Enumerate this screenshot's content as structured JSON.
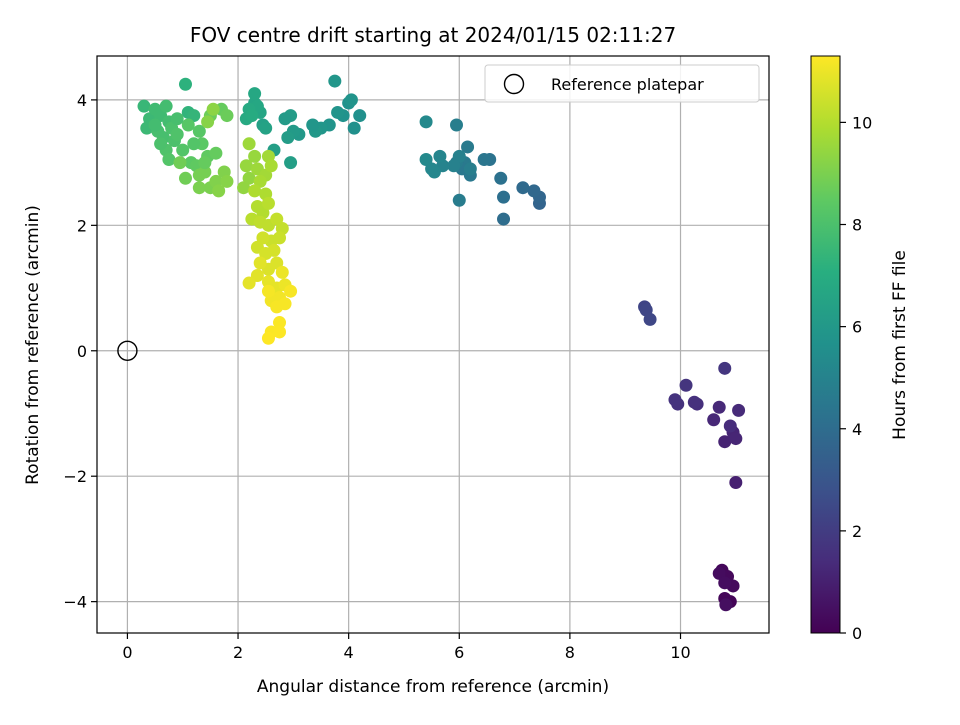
{
  "chart_data": {
    "type": "scatter",
    "title": "FOV centre drift starting at 2024/01/15 02:11:27",
    "xlabel": "Angular distance from reference (arcmin)",
    "ylabel": "Rotation from reference (arcmin)",
    "xlim": [
      -0.55,
      11.6
    ],
    "ylim": [
      -4.5,
      4.7
    ],
    "xticks": [
      0,
      2,
      4,
      6,
      8,
      10
    ],
    "yticks": [
      -4,
      -2,
      0,
      2,
      4
    ],
    "xtick_labels": [
      "0",
      "2",
      "4",
      "6",
      "8",
      "10"
    ],
    "ytick_labels": [
      "−4",
      "−2",
      "0",
      "2",
      "4"
    ],
    "grid": true,
    "legend": {
      "placement": "top-right",
      "entries": [
        "Reference platepar"
      ]
    },
    "reference_point": {
      "x": 0,
      "y": 0,
      "label": "Reference platepar"
    },
    "colorbar": {
      "label": "Hours from first FF file",
      "colormap": "viridis",
      "range": [
        0,
        11.3
      ],
      "ticks": [
        0,
        2,
        4,
        6,
        8,
        10
      ],
      "tick_labels": [
        "0",
        "2",
        "4",
        "6",
        "8",
        "10"
      ]
    },
    "points": [
      {
        "x": 10.9,
        "y": -4.0,
        "c": 0.1
      },
      {
        "x": 10.8,
        "y": -3.95,
        "c": 0.15
      },
      {
        "x": 10.75,
        "y": -3.5,
        "c": 0.2
      },
      {
        "x": 10.85,
        "y": -3.6,
        "c": 0.25
      },
      {
        "x": 10.95,
        "y": -3.75,
        "c": 0.3
      },
      {
        "x": 10.7,
        "y": -3.55,
        "c": 0.35
      },
      {
        "x": 10.8,
        "y": -3.7,
        "c": 0.4
      },
      {
        "x": 10.82,
        "y": -4.05,
        "c": 0.45
      },
      {
        "x": 11.0,
        "y": -2.1,
        "c": 1.0
      },
      {
        "x": 10.8,
        "y": -1.45,
        "c": 1.1
      },
      {
        "x": 10.95,
        "y": -1.3,
        "c": 1.15
      },
      {
        "x": 11.0,
        "y": -1.4,
        "c": 1.2
      },
      {
        "x": 10.6,
        "y": -1.1,
        "c": 1.25
      },
      {
        "x": 10.7,
        "y": -0.9,
        "c": 1.3
      },
      {
        "x": 11.05,
        "y": -0.95,
        "c": 1.35
      },
      {
        "x": 10.9,
        "y": -1.2,
        "c": 1.4
      },
      {
        "x": 10.3,
        "y": -0.85,
        "c": 1.5
      },
      {
        "x": 10.25,
        "y": -0.82,
        "c": 1.55
      },
      {
        "x": 9.95,
        "y": -0.85,
        "c": 1.6
      },
      {
        "x": 9.9,
        "y": -0.78,
        "c": 1.65
      },
      {
        "x": 10.1,
        "y": -0.55,
        "c": 1.7
      },
      {
        "x": 10.8,
        "y": -0.28,
        "c": 1.75
      },
      {
        "x": 9.35,
        "y": 0.7,
        "c": 2.3
      },
      {
        "x": 9.38,
        "y": 0.65,
        "c": 2.35
      },
      {
        "x": 9.45,
        "y": 0.5,
        "c": 2.4
      },
      {
        "x": 7.45,
        "y": 2.35,
        "c": 3.6
      },
      {
        "x": 7.45,
        "y": 2.45,
        "c": 3.7
      },
      {
        "x": 7.35,
        "y": 2.55,
        "c": 3.8
      },
      {
        "x": 7.15,
        "y": 2.6,
        "c": 3.9
      },
      {
        "x": 6.8,
        "y": 2.1,
        "c": 4.0
      },
      {
        "x": 6.8,
        "y": 2.45,
        "c": 4.1
      },
      {
        "x": 6.75,
        "y": 2.75,
        "c": 4.2
      },
      {
        "x": 6.55,
        "y": 3.05,
        "c": 4.3
      },
      {
        "x": 6.45,
        "y": 3.05,
        "c": 4.4
      },
      {
        "x": 6.2,
        "y": 2.8,
        "c": 4.5
      },
      {
        "x": 6.15,
        "y": 3.25,
        "c": 4.6
      },
      {
        "x": 6.0,
        "y": 2.4,
        "c": 4.7
      },
      {
        "x": 5.95,
        "y": 3.6,
        "c": 4.8
      },
      {
        "x": 6.1,
        "y": 3.0,
        "c": 4.6
      },
      {
        "x": 6.05,
        "y": 2.9,
        "c": 4.5
      },
      {
        "x": 5.95,
        "y": 3.0,
        "c": 4.7
      },
      {
        "x": 6.2,
        "y": 2.9,
        "c": 4.8
      },
      {
        "x": 6.0,
        "y": 3.1,
        "c": 4.9
      },
      {
        "x": 5.9,
        "y": 2.95,
        "c": 4.9
      },
      {
        "x": 5.7,
        "y": 2.95,
        "c": 5.0
      },
      {
        "x": 5.65,
        "y": 3.1,
        "c": 5.1
      },
      {
        "x": 5.55,
        "y": 2.85,
        "c": 5.2
      },
      {
        "x": 5.5,
        "y": 2.9,
        "c": 5.2
      },
      {
        "x": 5.4,
        "y": 3.05,
        "c": 5.3
      },
      {
        "x": 5.4,
        "y": 3.65,
        "c": 5.3
      },
      {
        "x": 4.2,
        "y": 3.75,
        "c": 5.6
      },
      {
        "x": 4.1,
        "y": 3.55,
        "c": 5.6
      },
      {
        "x": 4.0,
        "y": 3.95,
        "c": 5.7
      },
      {
        "x": 4.05,
        "y": 4.0,
        "c": 5.8
      },
      {
        "x": 3.9,
        "y": 3.75,
        "c": 5.7
      },
      {
        "x": 3.8,
        "y": 3.8,
        "c": 5.8
      },
      {
        "x": 3.75,
        "y": 4.3,
        "c": 5.9
      },
      {
        "x": 3.65,
        "y": 3.6,
        "c": 5.8
      },
      {
        "x": 3.5,
        "y": 3.55,
        "c": 5.9
      },
      {
        "x": 3.4,
        "y": 3.5,
        "c": 6.0
      },
      {
        "x": 3.35,
        "y": 3.6,
        "c": 5.9
      },
      {
        "x": 3.1,
        "y": 3.45,
        "c": 6.0
      },
      {
        "x": 3.0,
        "y": 3.5,
        "c": 6.1
      },
      {
        "x": 2.95,
        "y": 3.75,
        "c": 6.2
      },
      {
        "x": 2.85,
        "y": 3.7,
        "c": 6.1
      },
      {
        "x": 2.9,
        "y": 3.4,
        "c": 6.2
      },
      {
        "x": 2.95,
        "y": 3.0,
        "c": 6.3
      },
      {
        "x": 2.65,
        "y": 3.2,
        "c": 6.3
      },
      {
        "x": 2.45,
        "y": 3.6,
        "c": 6.4
      },
      {
        "x": 2.5,
        "y": 3.55,
        "c": 6.5
      },
      {
        "x": 2.4,
        "y": 3.8,
        "c": 6.6
      },
      {
        "x": 2.3,
        "y": 3.95,
        "c": 6.6
      },
      {
        "x": 2.3,
        "y": 4.1,
        "c": 6.7
      },
      {
        "x": 2.35,
        "y": 3.9,
        "c": 6.7
      },
      {
        "x": 2.2,
        "y": 3.85,
        "c": 6.8
      },
      {
        "x": 2.15,
        "y": 3.7,
        "c": 6.8
      },
      {
        "x": 2.25,
        "y": 3.75,
        "c": 6.9
      },
      {
        "x": 1.05,
        "y": 4.25,
        "c": 7.2
      },
      {
        "x": 1.1,
        "y": 3.8,
        "c": 7.3
      },
      {
        "x": 1.2,
        "y": 3.75,
        "c": 7.4
      },
      {
        "x": 0.3,
        "y": 3.9,
        "c": 7.5
      },
      {
        "x": 0.4,
        "y": 3.7,
        "c": 7.6
      },
      {
        "x": 0.35,
        "y": 3.55,
        "c": 7.6
      },
      {
        "x": 0.5,
        "y": 3.85,
        "c": 7.7
      },
      {
        "x": 0.6,
        "y": 3.75,
        "c": 7.7
      },
      {
        "x": 0.7,
        "y": 3.9,
        "c": 7.8
      },
      {
        "x": 0.75,
        "y": 3.65,
        "c": 7.8
      },
      {
        "x": 0.55,
        "y": 3.5,
        "c": 7.9
      },
      {
        "x": 0.65,
        "y": 3.4,
        "c": 7.9
      },
      {
        "x": 0.8,
        "y": 3.55,
        "c": 8.0
      },
      {
        "x": 0.85,
        "y": 3.35,
        "c": 8.0
      },
      {
        "x": 0.9,
        "y": 3.45,
        "c": 8.1
      },
      {
        "x": 0.7,
        "y": 3.2,
        "c": 8.1
      },
      {
        "x": 0.75,
        "y": 3.05,
        "c": 8.2
      },
      {
        "x": 1.0,
        "y": 3.2,
        "c": 8.2
      },
      {
        "x": 1.1,
        "y": 3.6,
        "c": 8.3
      },
      {
        "x": 1.3,
        "y": 3.5,
        "c": 8.3
      },
      {
        "x": 1.35,
        "y": 3.3,
        "c": 8.4
      },
      {
        "x": 1.15,
        "y": 3.0,
        "c": 8.4
      },
      {
        "x": 1.25,
        "y": 2.95,
        "c": 8.5
      },
      {
        "x": 1.45,
        "y": 3.1,
        "c": 8.5
      },
      {
        "x": 1.6,
        "y": 3.15,
        "c": 8.6
      },
      {
        "x": 1.7,
        "y": 3.85,
        "c": 8.6
      },
      {
        "x": 1.8,
        "y": 3.75,
        "c": 8.7
      },
      {
        "x": 1.5,
        "y": 3.75,
        "c": 8.7
      },
      {
        "x": 0.95,
        "y": 3.0,
        "c": 8.8
      },
      {
        "x": 1.05,
        "y": 2.75,
        "c": 8.8
      },
      {
        "x": 1.3,
        "y": 2.8,
        "c": 8.9
      },
      {
        "x": 1.4,
        "y": 2.85,
        "c": 8.9
      },
      {
        "x": 1.5,
        "y": 2.6,
        "c": 9.0
      },
      {
        "x": 1.3,
        "y": 2.6,
        "c": 9.0
      },
      {
        "x": 1.6,
        "y": 2.7,
        "c": 9.1
      },
      {
        "x": 1.75,
        "y": 2.85,
        "c": 9.1
      },
      {
        "x": 1.8,
        "y": 2.7,
        "c": 9.2
      },
      {
        "x": 1.65,
        "y": 2.55,
        "c": 9.2
      },
      {
        "x": 1.55,
        "y": 3.85,
        "c": 9.3
      },
      {
        "x": 1.45,
        "y": 3.65,
        "c": 9.2
      },
      {
        "x": 0.5,
        "y": 3.6,
        "c": 7.8
      },
      {
        "x": 0.6,
        "y": 3.3,
        "c": 8.0
      },
      {
        "x": 1.2,
        "y": 3.3,
        "c": 8.2
      },
      {
        "x": 1.4,
        "y": 3.0,
        "c": 8.6
      },
      {
        "x": 0.9,
        "y": 3.7,
        "c": 7.9
      },
      {
        "x": 2.1,
        "y": 2.6,
        "c": 9.4
      },
      {
        "x": 2.2,
        "y": 2.75,
        "c": 9.4
      },
      {
        "x": 2.15,
        "y": 2.95,
        "c": 9.5
      },
      {
        "x": 2.3,
        "y": 3.1,
        "c": 9.5
      },
      {
        "x": 2.2,
        "y": 3.3,
        "c": 9.6
      },
      {
        "x": 2.35,
        "y": 2.9,
        "c": 9.6
      },
      {
        "x": 2.5,
        "y": 2.8,
        "c": 9.7
      },
      {
        "x": 2.55,
        "y": 3.1,
        "c": 9.7
      },
      {
        "x": 2.6,
        "y": 2.95,
        "c": 9.8
      },
      {
        "x": 2.4,
        "y": 2.7,
        "c": 9.8
      },
      {
        "x": 2.5,
        "y": 2.5,
        "c": 9.9
      },
      {
        "x": 2.3,
        "y": 2.55,
        "c": 9.9
      },
      {
        "x": 2.35,
        "y": 2.3,
        "c": 10.0
      },
      {
        "x": 2.45,
        "y": 2.2,
        "c": 10.0
      },
      {
        "x": 2.55,
        "y": 2.35,
        "c": 10.1
      },
      {
        "x": 2.25,
        "y": 2.1,
        "c": 10.1
      },
      {
        "x": 2.4,
        "y": 2.05,
        "c": 10.2
      },
      {
        "x": 2.55,
        "y": 2.0,
        "c": 10.2
      },
      {
        "x": 2.7,
        "y": 2.1,
        "c": 10.3
      },
      {
        "x": 2.8,
        "y": 1.95,
        "c": 10.3
      },
      {
        "x": 2.75,
        "y": 1.8,
        "c": 10.4
      },
      {
        "x": 2.6,
        "y": 1.75,
        "c": 10.4
      },
      {
        "x": 2.45,
        "y": 1.8,
        "c": 10.5
      },
      {
        "x": 2.35,
        "y": 1.65,
        "c": 10.5
      },
      {
        "x": 2.5,
        "y": 1.55,
        "c": 10.6
      },
      {
        "x": 2.65,
        "y": 1.6,
        "c": 10.6
      },
      {
        "x": 2.7,
        "y": 1.4,
        "c": 10.7
      },
      {
        "x": 2.55,
        "y": 1.3,
        "c": 10.7
      },
      {
        "x": 2.4,
        "y": 1.4,
        "c": 10.8
      },
      {
        "x": 2.35,
        "y": 1.2,
        "c": 10.8
      },
      {
        "x": 2.55,
        "y": 1.1,
        "c": 10.9
      },
      {
        "x": 2.7,
        "y": 1.0,
        "c": 10.9
      },
      {
        "x": 2.85,
        "y": 1.05,
        "c": 11.0
      },
      {
        "x": 2.8,
        "y": 1.25,
        "c": 11.0
      },
      {
        "x": 2.75,
        "y": 0.85,
        "c": 11.1
      },
      {
        "x": 2.6,
        "y": 0.8,
        "c": 11.1
      },
      {
        "x": 2.7,
        "y": 0.7,
        "c": 11.2
      },
      {
        "x": 2.85,
        "y": 0.75,
        "c": 11.2
      },
      {
        "x": 2.55,
        "y": 0.95,
        "c": 11.15
      },
      {
        "x": 2.2,
        "y": 1.08,
        "c": 10.85
      },
      {
        "x": 2.75,
        "y": 0.45,
        "c": 11.25
      },
      {
        "x": 2.6,
        "y": 0.3,
        "c": 11.25
      },
      {
        "x": 2.75,
        "y": 0.3,
        "c": 11.28
      },
      {
        "x": 2.55,
        "y": 0.2,
        "c": 11.3
      },
      {
        "x": 2.95,
        "y": 0.95,
        "c": 11.2
      }
    ]
  }
}
